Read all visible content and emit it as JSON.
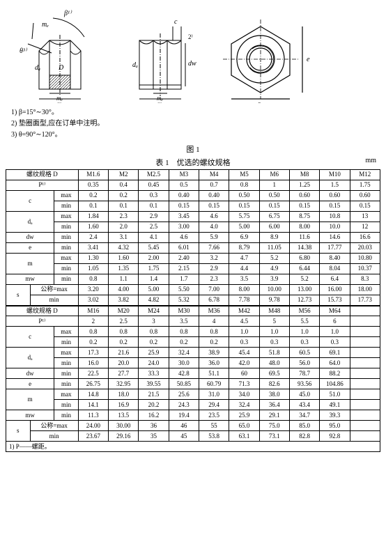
{
  "diagram": {
    "labels": {
      "beta": "β¹⁾",
      "mw": "mₑ",
      "theta": "θ³⁾",
      "da": "dₐ",
      "D": "D",
      "dw": "dw",
      "c": "c",
      "note2": "2⁾",
      "s": "s",
      "e": "e",
      "m": "m"
    }
  },
  "notes": {
    "n1": "1) β=15°∼30°。",
    "n2": "2) 垫圈面型,应在订单中注明。",
    "n3": "3) θ=90°∼120°。"
  },
  "captions": {
    "fig": "图 1",
    "tab": "表 1　优选的螺纹规格",
    "unit": "mm"
  },
  "headers": {
    "thread": "螺纹规格 D",
    "P": "P¹⁾",
    "c": "c",
    "da": "dₐ",
    "dw": "dw",
    "e": "e",
    "m": "m",
    "mw": "mw",
    "s": "s",
    "max": "max",
    "min": "min",
    "nom": "公称=max"
  },
  "t1": {
    "sizes": [
      "M1.6",
      "M2",
      "M2.5",
      "M3",
      "M4",
      "M5",
      "M6",
      "M8",
      "M10",
      "M12"
    ],
    "P": [
      "0.35",
      "0.4",
      "0.45",
      "0.5",
      "0.7",
      "0.8",
      "1",
      "1.25",
      "1.5",
      "1.75"
    ],
    "c_max": [
      "0.2",
      "0.2",
      "0.3",
      "0.40",
      "0.40",
      "0.50",
      "0.50",
      "0.60",
      "0.60",
      "0.60"
    ],
    "c_min": [
      "0.1",
      "0.1",
      "0.1",
      "0.15",
      "0.15",
      "0.15",
      "0.15",
      "0.15",
      "0.15",
      "0.15"
    ],
    "da_max": [
      "1.84",
      "2.3",
      "2.9",
      "3.45",
      "4.6",
      "5.75",
      "6.75",
      "8.75",
      "10.8",
      "13"
    ],
    "da_min": [
      "1.60",
      "2.0",
      "2.5",
      "3.00",
      "4.0",
      "5.00",
      "6.00",
      "8.00",
      "10.0",
      "12"
    ],
    "dw_min": [
      "2.4",
      "3.1",
      "4.1",
      "4.6",
      "5.9",
      "6.9",
      "8.9",
      "11.6",
      "14.6",
      "16.6"
    ],
    "e_min": [
      "3.41",
      "4.32",
      "5.45",
      "6.01",
      "7.66",
      "8.79",
      "11.05",
      "14.38",
      "17.77",
      "20.03"
    ],
    "m_max": [
      "1.30",
      "1.60",
      "2.00",
      "2.40",
      "3.2",
      "4.7",
      "5.2",
      "6.80",
      "8.40",
      "10.80"
    ],
    "m_min": [
      "1.05",
      "1.35",
      "1.75",
      "2.15",
      "2.9",
      "4.4",
      "4.9",
      "6.44",
      "8.04",
      "10.37"
    ],
    "mw_min": [
      "0.8",
      "1.1",
      "1.4",
      "1.7",
      "2.3",
      "3.5",
      "3.9",
      "5.2",
      "6.4",
      "8.3"
    ],
    "s_nom": [
      "3.20",
      "4.00",
      "5.00",
      "5.50",
      "7.00",
      "8.00",
      "10.00",
      "13.00",
      "16.00",
      "18.00"
    ],
    "s_min": [
      "3.02",
      "3.82",
      "4.82",
      "5.32",
      "6.78",
      "7.78",
      "9.78",
      "12.73",
      "15.73",
      "17.73"
    ]
  },
  "t2": {
    "sizes": [
      "M16",
      "M20",
      "M24",
      "M30",
      "M36",
      "M42",
      "M48",
      "M56",
      "M64"
    ],
    "P": [
      "2",
      "2.5",
      "3",
      "3.5",
      "4",
      "4.5",
      "5",
      "5.5",
      "6"
    ],
    "c_max": [
      "0.8",
      "0.8",
      "0.8",
      "0.8",
      "0.8",
      "1.0",
      "1.0",
      "1.0",
      "1.0"
    ],
    "c_min": [
      "0.2",
      "0.2",
      "0.2",
      "0.2",
      "0.2",
      "0.3",
      "0.3",
      "0.3",
      "0.3"
    ],
    "da_max": [
      "17.3",
      "21.6",
      "25.9",
      "32.4",
      "38.9",
      "45.4",
      "51.8",
      "60.5",
      "69.1"
    ],
    "da_min": [
      "16.0",
      "20.0",
      "24.0",
      "30.0",
      "36.0",
      "42.0",
      "48.0",
      "56.0",
      "64.0"
    ],
    "dw_min": [
      "22.5",
      "27.7",
      "33.3",
      "42.8",
      "51.1",
      "60",
      "69.5",
      "78.7",
      "88.2"
    ],
    "e_min": [
      "26.75",
      "32.95",
      "39.55",
      "50.85",
      "60.79",
      "71.3",
      "82.6",
      "93.56",
      "104.86"
    ],
    "m_max": [
      "14.8",
      "18.0",
      "21.5",
      "25.6",
      "31.0",
      "34.0",
      "38.0",
      "45.0",
      "51.0"
    ],
    "m_min": [
      "14.1",
      "16.9",
      "20.2",
      "24.3",
      "29.4",
      "32.4",
      "36.4",
      "43.4",
      "49.1"
    ],
    "mw_min": [
      "11.3",
      "13.5",
      "16.2",
      "19.4",
      "23.5",
      "25.9",
      "29.1",
      "34.7",
      "39.3"
    ],
    "s_nom": [
      "24.00",
      "30.00",
      "36",
      "46",
      "55",
      "65.0",
      "75.0",
      "85.0",
      "95.0"
    ],
    "s_min": [
      "23.67",
      "29.16",
      "35",
      "45",
      "53.8",
      "63.1",
      "73.1",
      "82.8",
      "92.8"
    ]
  },
  "footnote": "1) P——螺距。"
}
